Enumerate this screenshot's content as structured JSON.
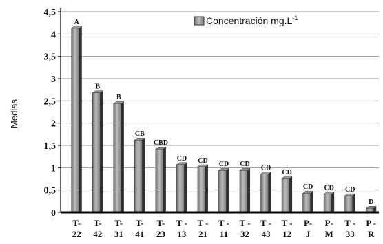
{
  "chart_data": {
    "type": "bar",
    "ylabel": "Medias",
    "xlabel": "",
    "ylim": [
      0,
      4.5
    ],
    "yticks": [
      "0",
      "0,5",
      "1",
      "1,5",
      "2",
      "2,5",
      "3",
      "3,5",
      "4",
      "4,5"
    ],
    "grid": "horizontal",
    "legend_position": "top-right",
    "legend": {
      "text": "Concentración mg.L",
      "superscript": "-1"
    },
    "series": [
      {
        "name": "Concentración mg.L-1",
        "values": [
          4.13,
          2.68,
          2.44,
          1.62,
          1.42,
          1.07,
          1.02,
          0.94,
          0.94,
          0.86,
          0.76,
          0.43,
          0.41,
          0.37,
          0.09
        ]
      }
    ],
    "categories": [
      [
        "T-",
        "22"
      ],
      [
        "T-",
        "42"
      ],
      [
        "T-",
        "31"
      ],
      [
        "T-",
        "41"
      ],
      [
        "T-",
        "23"
      ],
      [
        "T -",
        "13"
      ],
      [
        "T -",
        "21"
      ],
      [
        "T -",
        "11"
      ],
      [
        "T -",
        "32"
      ],
      [
        "T -",
        "43"
      ],
      [
        "T -",
        "12"
      ],
      [
        "P-",
        "J"
      ],
      [
        "P-",
        "M"
      ],
      [
        "T -",
        "33"
      ],
      [
        "P -",
        "R"
      ]
    ],
    "significance_letters": [
      "A",
      "B",
      "B",
      "CB",
      "CBD",
      "CD",
      "CD",
      "CD",
      "CD",
      "CD",
      "CD",
      "CD",
      "CD",
      "CD",
      "D"
    ],
    "colors": {
      "bar_front": "#808080",
      "bar_highlight": "#b8b8b8",
      "bar_side": "#2f2f2f",
      "grid": "#9a9a9a",
      "axis": "#000000",
      "text": "#111111"
    }
  }
}
